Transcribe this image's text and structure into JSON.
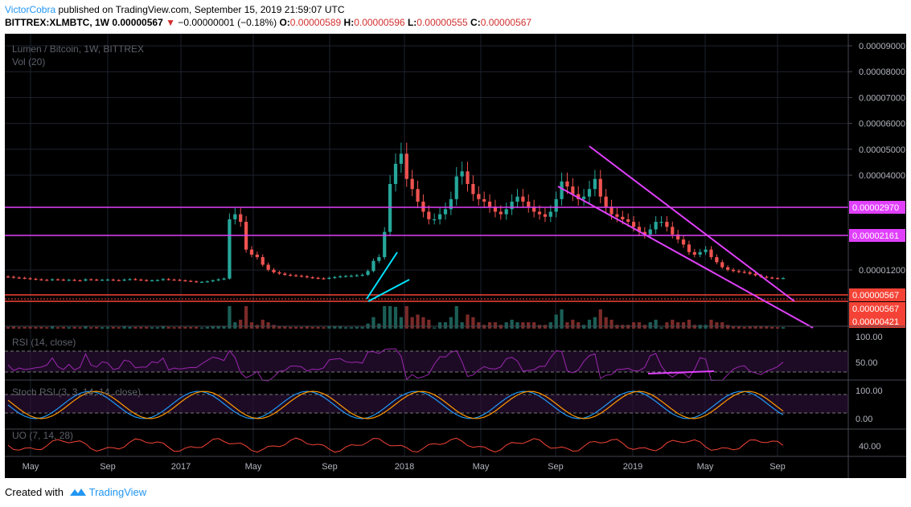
{
  "header": {
    "author": "VictorCobra",
    "published": " published on TradingView.com, September 15, 2019 21:59:07 UTC",
    "symbol": "BITTREX:XLMBTC, 1W",
    "price": "0.00000567",
    "arrow": "▼",
    "change": "−0.00000001 (−0.18%)",
    "o_label": "O:",
    "o": "0.00000589",
    "h_label": "H:",
    "h": "0.00000596",
    "l_label": "L:",
    "l": "0.00000555",
    "c_label": "C:",
    "c": "0.00000567"
  },
  "footer": {
    "created": "Created with",
    "brand": "TradingView"
  },
  "colors": {
    "up": "#26a69a",
    "down": "#ef5350",
    "magenta": "#e040fb",
    "red": "#f44336",
    "cyan": "#00e5ff",
    "volume_up": "#1b5e56",
    "volume_down": "#7a2a28",
    "rsi": "#9c27b0",
    "stoch_k": "#2196f3",
    "stoch_d": "#ff9800",
    "uo": "#f44336"
  },
  "chart_data": {
    "type": "candlestick",
    "title": "Lumen / Bitcoin, 1W, BITTREX",
    "volume_label": "Vol (20)",
    "x_ticks": [
      "May",
      "Sep",
      "2017",
      "May",
      "Sep",
      "2018",
      "May",
      "Sep",
      "2019",
      "May",
      "Sep"
    ],
    "y_ticks": [
      "0.00009000",
      "0.00008000",
      "0.00007000",
      "0.00006000",
      "0.00005000",
      "0.00004000",
      "0.00001200"
    ],
    "price_tags": [
      {
        "value": "0.00002970",
        "color": "#e040fb"
      },
      {
        "value": "0.00002161",
        "color": "#e040fb"
      },
      {
        "value": "0.00000567",
        "color": "#f44336"
      },
      {
        "value": "0.00000567",
        "color": "#f44336"
      },
      {
        "value": "0.00000421",
        "color": "#f44336"
      }
    ],
    "horizontal_lines": [
      {
        "value": 2.97e-05,
        "color": "#e040fb"
      },
      {
        "value": 2.161e-05,
        "color": "#e040fb"
      },
      {
        "value": 5.67e-06,
        "color": "#f44336"
      },
      {
        "value": 4.21e-06,
        "color": "#f44336"
      }
    ],
    "close_approx": [
      6.2e-06,
      5.9e-06,
      5.8e-06,
      5.6e-06,
      5.4e-06,
      5.2e-06,
      5e-06,
      4.9e-06,
      5.2e-06,
      5.1e-06,
      4.9e-06,
      5e-06,
      4.8e-06,
      4.7e-06,
      5.2e-06,
      5.1e-06,
      4.9e-06,
      5e-06,
      5.1e-06,
      4.9e-06,
      4.8e-06,
      5.1e-06,
      5.3e-06,
      5.1e-06,
      4.9e-06,
      4.7e-06,
      4.8e-06,
      4.9e-06,
      5.3e-06,
      5.1e-06,
      5e-06,
      4.8e-06,
      4.6e-06,
      4.4e-06,
      4.2e-06,
      4.2e-06,
      4.4e-06,
      4.8e-06,
      5.2e-06,
      5.5e-06,
      2.9e-05,
      3.1e-05,
      2.8e-05,
      1.7e-05,
      1.5e-05,
      1.4e-05,
      1.1e-05,
      9e-06,
      8e-06,
      7.5e-06,
      7e-06,
      6.8e-06,
      6.6e-06,
      6.4e-06,
      6e-06,
      5.8e-06,
      5.6e-06,
      5.5e-06,
      5.8e-06,
      6.1e-06,
      6.4e-06,
      6.5e-06,
      6.6e-06,
      6.8e-06,
      7e-06,
      8.5e-06,
      1.25e-05,
      1.4e-05,
      2.4e-05,
      4.3e-05,
      5.1e-05,
      5.5e-05,
      4.5e-05,
      4.1e-05,
      3.6e-05,
      3.2e-05,
      2.9e-05,
      2.9e-05,
      3.1e-05,
      3.3e-05,
      3.7e-05,
      4.6e-05,
      4.8e-05,
      4.3e-05,
      3.9e-05,
      3.7e-05,
      3.6e-05,
      3.4e-05,
      3.2e-05,
      3.1e-05,
      3.3e-05,
      3.6e-05,
      3.8e-05,
      3.6e-05,
      3.4e-05,
      3.2e-05,
      3.1e-05,
      3e-05,
      3.2e-05,
      3.7e-05,
      4.4e-05,
      4.2e-05,
      3.9e-05,
      3.7e-05,
      3.8e-05,
      4.1e-05,
      4.5e-05,
      3.8e-05,
      3.4e-05,
      3.1e-05,
      3e-05,
      2.9e-05,
      2.8e-05,
      2.6e-05,
      2.4e-05,
      2.3e-05,
      2.5e-05,
      2.8e-05,
      2.8e-05,
      2.6e-05,
      2.3e-05,
      2.1e-05,
      1.9e-05,
      1.6e-05,
      1.5e-05,
      1.6e-05,
      1.7e-05,
      1.4e-05,
      1.2e-05,
      1e-05,
      9e-06,
      8.5e-06,
      8.2e-06,
      8e-06,
      7.4e-06,
      6.8e-06,
      6.2e-06,
      5.9e-06,
      5.7e-06,
      5.6e-06,
      5.7e-06
    ],
    "indicators": [
      {
        "label": "RSI (14, close)",
        "ticks": [
          "100.00",
          "50.00"
        ]
      },
      {
        "label": "Stoch RSI (3, 3, 14, 14, close)",
        "ticks": [
          "100.00",
          "0.00"
        ]
      },
      {
        "label": "UO (7, 14, 28)",
        "ticks": [
          "40.00"
        ]
      }
    ]
  }
}
